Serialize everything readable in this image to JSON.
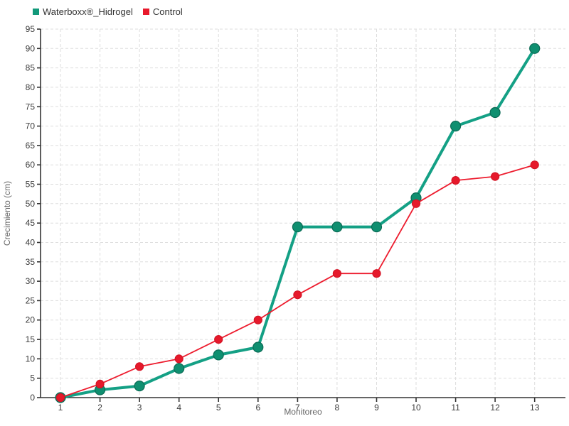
{
  "legend": {
    "items": [
      {
        "label": "Waterboxx®_Hidrogel",
        "color": "#12997a"
      },
      {
        "label": "Control",
        "color": "#e8192b"
      }
    ]
  },
  "chart_data": {
    "type": "line",
    "title": "",
    "xlabel": "Monitoreo",
    "ylabel": "Crecimiento (cm)",
    "x": [
      1,
      2,
      3,
      4,
      5,
      6,
      7,
      8,
      9,
      10,
      11,
      12,
      13
    ],
    "ylim": [
      0,
      95
    ],
    "ytick_step": 5,
    "grid": true,
    "grid_style": "dashed",
    "grid_color": "#dddddd",
    "axis_color": "#333333",
    "background": "#ffffff",
    "legend_position": "top-left",
    "series": [
      {
        "name": "Waterboxx®_Hidrogel",
        "color": "#14a085",
        "marker_color": "#0f8f70",
        "marker_stroke": "#0b6b55",
        "line_width": 4,
        "marker_radius": 7,
        "values": [
          0,
          2,
          3,
          7.5,
          11,
          13,
          44,
          44,
          44,
          51.5,
          70,
          73.5,
          90
        ]
      },
      {
        "name": "Control",
        "color": "#ed1c2e",
        "marker_color": "#e6192b",
        "marker_stroke": "#d41425",
        "line_width": 1.8,
        "marker_radius": 5.5,
        "values": [
          0,
          3.5,
          8,
          10,
          15,
          20,
          26.5,
          32,
          32,
          50,
          56,
          57,
          60
        ]
      }
    ]
  }
}
